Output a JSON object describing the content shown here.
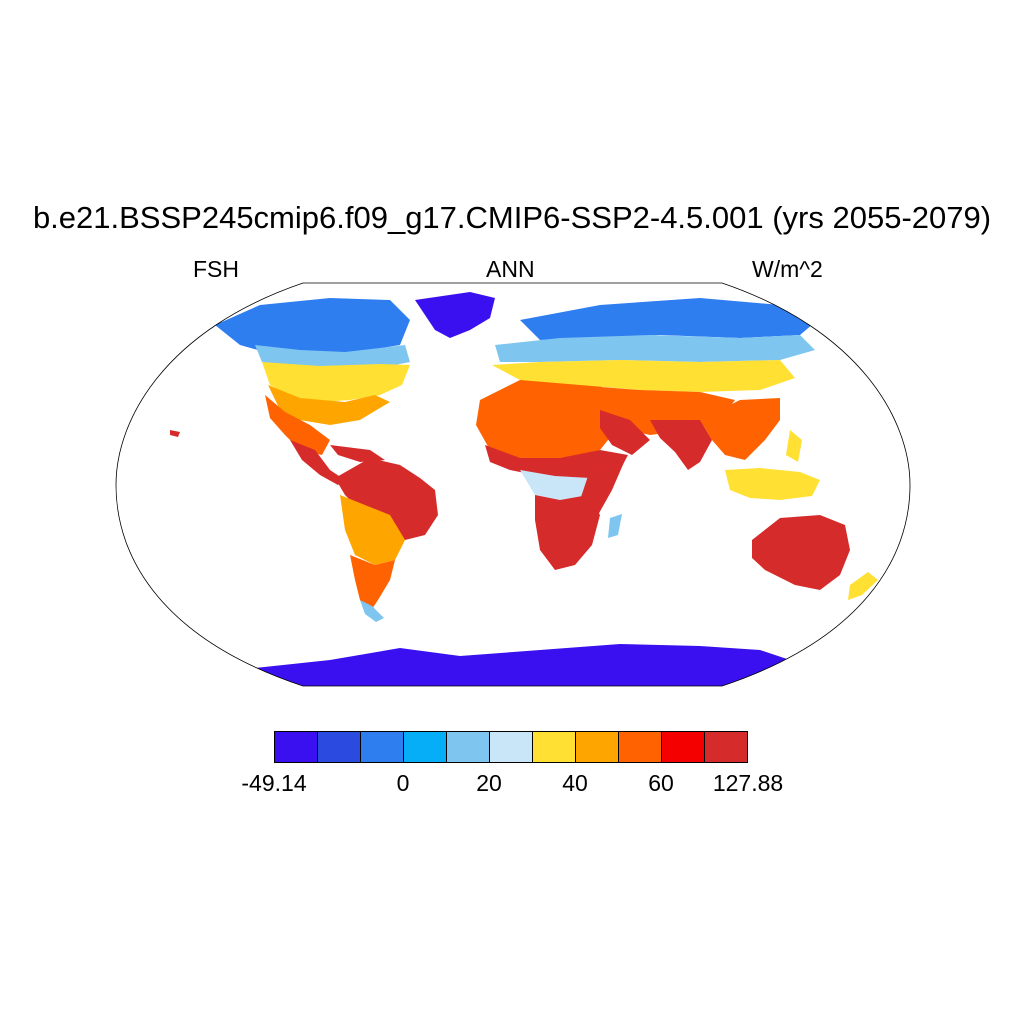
{
  "title": "b.e21.BSSP245cmip6.f09_g17.CMIP6-SSP2-4.5.001 (yrs 2055-2079)",
  "left_label": "FSH",
  "center_label": "ANN",
  "right_label": "W/m^2",
  "colorbar": {
    "colors": [
      "#3b10f0",
      "#2a4ae0",
      "#2f7ef0",
      "#06aef8",
      "#7ec6ef",
      "#c9e6f8",
      "#ffe033",
      "#ffa500",
      "#ff6200",
      "#f50000",
      "#d62b2b"
    ],
    "tick_labels": [
      "-49.14",
      "0",
      "20",
      "40",
      "60",
      "127.88"
    ]
  },
  "map_colors": {
    "ice": "#3b10f0",
    "cold_high": "#2f7ef0",
    "boreal": "#7ec6ef",
    "subarctic": "#c9e6f8",
    "temperate": "#ffe033",
    "warm": "#ffa500",
    "hot": "#ff6200",
    "very_hot": "#f50000",
    "max": "#d62b2b"
  }
}
